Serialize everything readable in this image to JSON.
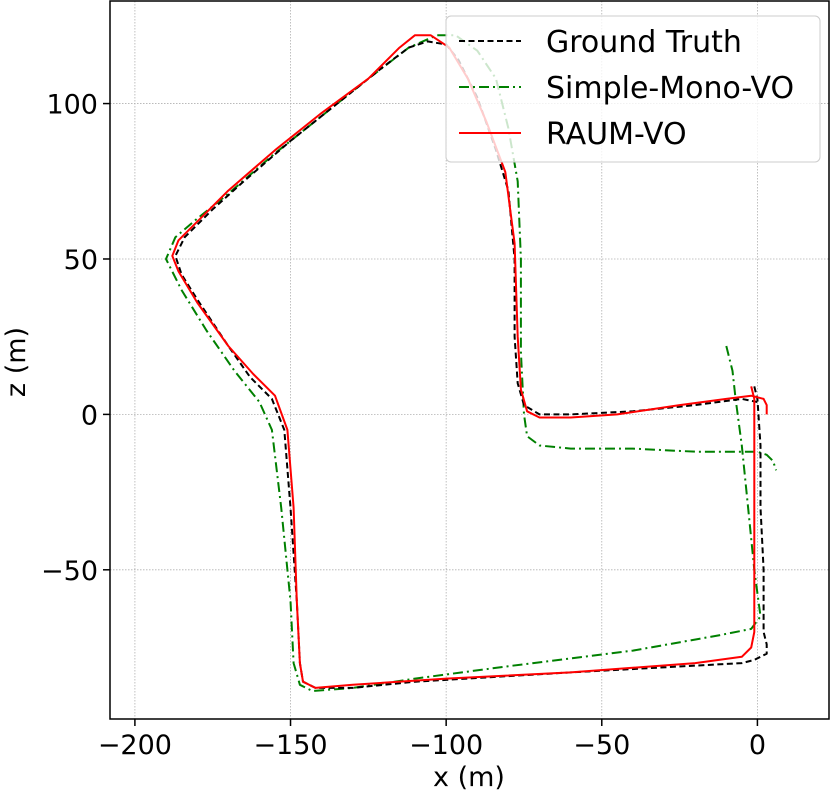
{
  "chart_data": {
    "type": "line",
    "title": "",
    "xlabel": "x (m)",
    "ylabel": "z (m)",
    "xlim": [
      -208,
      23
    ],
    "ylim": [
      -98,
      133
    ],
    "xticks": [
      -200,
      -150,
      -100,
      -50,
      0
    ],
    "yticks": [
      -50,
      0,
      50,
      100
    ],
    "xtick_labels": [
      "−200",
      "−150",
      "−100",
      "−50",
      "0"
    ],
    "ytick_labels": [
      "−50",
      "0",
      "50",
      "100"
    ],
    "grid": true,
    "legend_position": "top-right",
    "series": [
      {
        "name": "Ground Truth",
        "color": "#000000",
        "style": "dashed",
        "points": [
          [
            -1,
            9
          ],
          [
            0,
            5
          ],
          [
            1,
            -10
          ],
          [
            1,
            -30
          ],
          [
            2,
            -50
          ],
          [
            2,
            -70
          ],
          [
            3,
            -74
          ],
          [
            3,
            -77
          ],
          [
            -1,
            -79
          ],
          [
            -5,
            -80
          ],
          [
            -60,
            -83
          ],
          [
            -110,
            -86
          ],
          [
            -130,
            -88
          ],
          [
            -142,
            -88
          ],
          [
            -146,
            -86
          ],
          [
            -147,
            -80
          ],
          [
            -148,
            -60
          ],
          [
            -150,
            -30
          ],
          [
            -152,
            -5
          ],
          [
            -156,
            5
          ],
          [
            -163,
            12
          ],
          [
            -170,
            22
          ],
          [
            -180,
            37
          ],
          [
            -185,
            45
          ],
          [
            -187,
            51
          ],
          [
            -184,
            57
          ],
          [
            -175,
            66
          ],
          [
            -165,
            75
          ],
          [
            -150,
            88
          ],
          [
            -135,
            100
          ],
          [
            -120,
            112
          ],
          [
            -112,
            118
          ],
          [
            -106,
            120
          ],
          [
            -100,
            119
          ],
          [
            -96,
            114
          ],
          [
            -90,
            102
          ],
          [
            -84,
            85
          ],
          [
            -80,
            72
          ],
          [
            -78,
            50
          ],
          [
            -78,
            25
          ],
          [
            -77,
            10
          ],
          [
            -75,
            3
          ],
          [
            -70,
            0
          ],
          [
            -60,
            0
          ],
          [
            -40,
            1
          ],
          [
            -20,
            3
          ],
          [
            -5,
            5
          ],
          [
            0,
            4
          ]
        ]
      },
      {
        "name": "Simple-Mono-VO",
        "color": "#008000",
        "style": "dashdot",
        "points": [
          [
            -10,
            22
          ],
          [
            -8,
            14
          ],
          [
            -7,
            5
          ],
          [
            -5,
            -10
          ],
          [
            -3,
            -30
          ],
          [
            -1,
            -50
          ],
          [
            1,
            -65
          ],
          [
            -2,
            -69
          ],
          [
            -12,
            -71
          ],
          [
            -40,
            -76
          ],
          [
            -80,
            -81
          ],
          [
            -110,
            -85
          ],
          [
            -130,
            -88
          ],
          [
            -143,
            -89
          ],
          [
            -147,
            -87
          ],
          [
            -149,
            -80
          ],
          [
            -150,
            -60
          ],
          [
            -153,
            -30
          ],
          [
            -156,
            -5
          ],
          [
            -160,
            4
          ],
          [
            -168,
            14
          ],
          [
            -177,
            27
          ],
          [
            -185,
            40
          ],
          [
            -190,
            50
          ],
          [
            -187,
            57
          ],
          [
            -180,
            63
          ],
          [
            -170,
            71
          ],
          [
            -155,
            84
          ],
          [
            -140,
            96
          ],
          [
            -125,
            108
          ],
          [
            -112,
            118
          ],
          [
            -103,
            122
          ],
          [
            -97,
            122
          ],
          [
            -90,
            117
          ],
          [
            -84,
            108
          ],
          [
            -80,
            92
          ],
          [
            -77,
            75
          ],
          [
            -76,
            50
          ],
          [
            -76,
            20
          ],
          [
            -75,
            0
          ],
          [
            -74,
            -7
          ],
          [
            -70,
            -10
          ],
          [
            -60,
            -11
          ],
          [
            -40,
            -11
          ],
          [
            -20,
            -12
          ],
          [
            -5,
            -12
          ],
          [
            0,
            -12
          ],
          [
            3,
            -13
          ],
          [
            5,
            -15
          ],
          [
            6,
            -18
          ]
        ]
      },
      {
        "name": "RAUM-VO",
        "color": "#ff0000",
        "style": "solid",
        "points": [
          [
            -2,
            9
          ],
          [
            -1,
            5
          ],
          [
            -1,
            -10
          ],
          [
            -1,
            -30
          ],
          [
            -1,
            -50
          ],
          [
            -1,
            -70
          ],
          [
            -2,
            -75
          ],
          [
            -5,
            -78
          ],
          [
            -20,
            -80
          ],
          [
            -60,
            -83
          ],
          [
            -100,
            -85
          ],
          [
            -130,
            -87
          ],
          [
            -142,
            -88
          ],
          [
            -146,
            -86
          ],
          [
            -147,
            -80
          ],
          [
            -148,
            -60
          ],
          [
            -149,
            -30
          ],
          [
            -151,
            -5
          ],
          [
            -155,
            6
          ],
          [
            -162,
            13
          ],
          [
            -170,
            22
          ],
          [
            -180,
            36
          ],
          [
            -186,
            46
          ],
          [
            -188,
            51
          ],
          [
            -186,
            56
          ],
          [
            -180,
            62
          ],
          [
            -170,
            72
          ],
          [
            -155,
            85
          ],
          [
            -140,
            97
          ],
          [
            -125,
            108
          ],
          [
            -115,
            118
          ],
          [
            -110,
            122
          ],
          [
            -105,
            122
          ],
          [
            -99,
            118
          ],
          [
            -93,
            108
          ],
          [
            -87,
            94
          ],
          [
            -81,
            78
          ],
          [
            -78,
            55
          ],
          [
            -77,
            25
          ],
          [
            -76,
            8
          ],
          [
            -74,
            1
          ],
          [
            -70,
            -1
          ],
          [
            -60,
            -1
          ],
          [
            -45,
            0
          ],
          [
            -25,
            3
          ],
          [
            -10,
            5
          ],
          [
            -2,
            6
          ],
          [
            2,
            5
          ],
          [
            3,
            3
          ],
          [
            3,
            0
          ]
        ]
      }
    ]
  }
}
